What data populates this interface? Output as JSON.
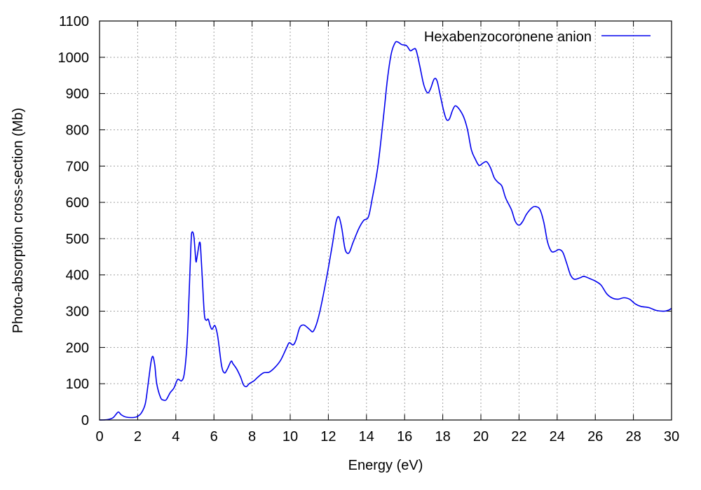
{
  "chart_data": {
    "type": "line",
    "title": "",
    "xlabel": "Energy (eV)",
    "ylabel": "Photo-absorption cross-section (Mb)",
    "xlim": [
      0,
      30
    ],
    "ylim": [
      0,
      1100
    ],
    "xticks": [
      0,
      2,
      4,
      6,
      8,
      10,
      12,
      14,
      16,
      18,
      20,
      22,
      24,
      26,
      28,
      30
    ],
    "yticks": [
      0,
      100,
      200,
      300,
      400,
      500,
      600,
      700,
      800,
      900,
      1000,
      1100
    ],
    "grid": true,
    "legend_position": "top-right",
    "series": [
      {
        "name": "Hexabenzocoronene anion",
        "color": "#0000ee",
        "points": [
          [
            0,
            0
          ],
          [
            0.4,
            1
          ],
          [
            0.7,
            6
          ],
          [
            0.9,
            18
          ],
          [
            1.0,
            22
          ],
          [
            1.15,
            14
          ],
          [
            1.4,
            8
          ],
          [
            1.8,
            7
          ],
          [
            2.0,
            10
          ],
          [
            2.2,
            20
          ],
          [
            2.4,
            45
          ],
          [
            2.55,
            100
          ],
          [
            2.7,
            160
          ],
          [
            2.8,
            175
          ],
          [
            2.9,
            150
          ],
          [
            3.0,
            100
          ],
          [
            3.2,
            62
          ],
          [
            3.35,
            55
          ],
          [
            3.5,
            56
          ],
          [
            3.7,
            75
          ],
          [
            3.9,
            88
          ],
          [
            4.1,
            112
          ],
          [
            4.3,
            108
          ],
          [
            4.45,
            130
          ],
          [
            4.6,
            220
          ],
          [
            4.7,
            350
          ],
          [
            4.8,
            490
          ],
          [
            4.85,
            518
          ],
          [
            4.95,
            505
          ],
          [
            5.05,
            440
          ],
          [
            5.1,
            445
          ],
          [
            5.2,
            478
          ],
          [
            5.25,
            490
          ],
          [
            5.3,
            475
          ],
          [
            5.4,
            380
          ],
          [
            5.5,
            290
          ],
          [
            5.6,
            275
          ],
          [
            5.7,
            278
          ],
          [
            5.8,
            260
          ],
          [
            5.9,
            250
          ],
          [
            6.05,
            260
          ],
          [
            6.2,
            230
          ],
          [
            6.4,
            150
          ],
          [
            6.55,
            130
          ],
          [
            6.7,
            140
          ],
          [
            6.9,
            162
          ],
          [
            7.0,
            155
          ],
          [
            7.2,
            140
          ],
          [
            7.4,
            118
          ],
          [
            7.55,
            97
          ],
          [
            7.7,
            92
          ],
          [
            7.85,
            100
          ],
          [
            8.1,
            108
          ],
          [
            8.3,
            118
          ],
          [
            8.6,
            130
          ],
          [
            8.9,
            132
          ],
          [
            9.2,
            145
          ],
          [
            9.5,
            165
          ],
          [
            9.8,
            198
          ],
          [
            9.95,
            213
          ],
          [
            10.15,
            207
          ],
          [
            10.3,
            220
          ],
          [
            10.5,
            255
          ],
          [
            10.7,
            262
          ],
          [
            10.9,
            255
          ],
          [
            11.05,
            248
          ],
          [
            11.2,
            244
          ],
          [
            11.4,
            268
          ],
          [
            11.6,
            310
          ],
          [
            11.9,
            390
          ],
          [
            12.2,
            480
          ],
          [
            12.4,
            545
          ],
          [
            12.55,
            560
          ],
          [
            12.7,
            530
          ],
          [
            12.85,
            478
          ],
          [
            12.95,
            462
          ],
          [
            13.1,
            462
          ],
          [
            13.3,
            490
          ],
          [
            13.6,
            528
          ],
          [
            13.85,
            550
          ],
          [
            14.1,
            560
          ],
          [
            14.3,
            610
          ],
          [
            14.6,
            700
          ],
          [
            14.9,
            840
          ],
          [
            15.1,
            940
          ],
          [
            15.3,
            1010
          ],
          [
            15.5,
            1040
          ],
          [
            15.65,
            1042
          ],
          [
            15.85,
            1035
          ],
          [
            16.1,
            1032
          ],
          [
            16.3,
            1018
          ],
          [
            16.45,
            1022
          ],
          [
            16.6,
            1020
          ],
          [
            16.8,
            975
          ],
          [
            17.0,
            925
          ],
          [
            17.2,
            902
          ],
          [
            17.35,
            912
          ],
          [
            17.55,
            940
          ],
          [
            17.7,
            935
          ],
          [
            17.85,
            900
          ],
          [
            18.05,
            852
          ],
          [
            18.2,
            828
          ],
          [
            18.35,
            830
          ],
          [
            18.5,
            852
          ],
          [
            18.65,
            866
          ],
          [
            18.85,
            858
          ],
          [
            19.1,
            835
          ],
          [
            19.3,
            800
          ],
          [
            19.5,
            745
          ],
          [
            19.7,
            720
          ],
          [
            19.9,
            702
          ],
          [
            20.1,
            708
          ],
          [
            20.3,
            712
          ],
          [
            20.5,
            696
          ],
          [
            20.7,
            668
          ],
          [
            20.9,
            655
          ],
          [
            21.1,
            645
          ],
          [
            21.3,
            612
          ],
          [
            21.6,
            580
          ],
          [
            21.8,
            548
          ],
          [
            22.0,
            537
          ],
          [
            22.2,
            548
          ],
          [
            22.4,
            568
          ],
          [
            22.7,
            586
          ],
          [
            22.9,
            588
          ],
          [
            23.1,
            580
          ],
          [
            23.3,
            545
          ],
          [
            23.5,
            490
          ],
          [
            23.7,
            465
          ],
          [
            23.9,
            465
          ],
          [
            24.1,
            470
          ],
          [
            24.3,
            462
          ],
          [
            24.5,
            432
          ],
          [
            24.7,
            400
          ],
          [
            24.9,
            388
          ],
          [
            25.2,
            392
          ],
          [
            25.4,
            396
          ],
          [
            25.7,
            390
          ],
          [
            26.0,
            383
          ],
          [
            26.3,
            372
          ],
          [
            26.6,
            348
          ],
          [
            26.9,
            336
          ],
          [
            27.2,
            333
          ],
          [
            27.5,
            337
          ],
          [
            27.8,
            333
          ],
          [
            28.1,
            320
          ],
          [
            28.4,
            313
          ],
          [
            28.8,
            310
          ],
          [
            29.2,
            302
          ],
          [
            29.6,
            300
          ],
          [
            29.85,
            303
          ],
          [
            30,
            308
          ]
        ]
      }
    ]
  }
}
